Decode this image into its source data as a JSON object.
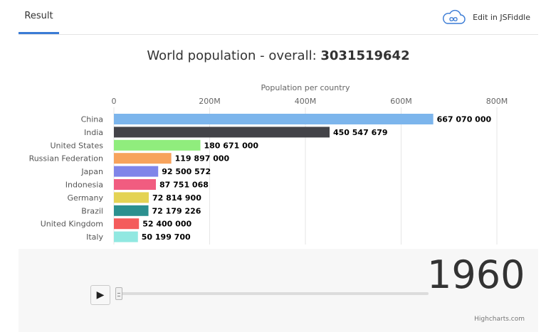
{
  "tabs": {
    "result_label": "Result",
    "fiddle_label": "Edit in JSFiddle"
  },
  "chart_data": {
    "type": "bar",
    "orientation": "horizontal",
    "title_prefix": "World population - overall: ",
    "title_value": "3031519642",
    "xlabel": "Population per country",
    "axis_ticks": [
      "0",
      "200M",
      "400M",
      "600M",
      "800M"
    ],
    "axis_tick_values": [
      0,
      200000000,
      400000000,
      600000000,
      800000000
    ],
    "xlim": [
      0,
      800000000
    ],
    "axis_position": "top",
    "grid": true,
    "categories": [
      "China",
      "India",
      "United States",
      "Russian Federation",
      "Japan",
      "Indonesia",
      "Germany",
      "Brazil",
      "United Kingdom",
      "Italy"
    ],
    "values": [
      667070000,
      450547679,
      180671000,
      119897000,
      92500572,
      87751068,
      72814900,
      72179226,
      52400000,
      50199700
    ],
    "value_labels": [
      "667 070 000",
      "450 547 679",
      "180 671 000",
      "119 897 000",
      "92 500 572",
      "87 751 068",
      "72 814 900",
      "72 179 226",
      "52 400 000",
      "50 199 700"
    ],
    "colors": [
      "#7cb5ec",
      "#434348",
      "#90ed7d",
      "#f7a35c",
      "#8085e9",
      "#f15c80",
      "#e4d354",
      "#2b908f",
      "#f45b5b",
      "#91e8e1"
    ]
  },
  "controls": {
    "play_icon": "play-icon",
    "year": "1960",
    "slider_value": 0
  },
  "credits": "Highcharts.com"
}
